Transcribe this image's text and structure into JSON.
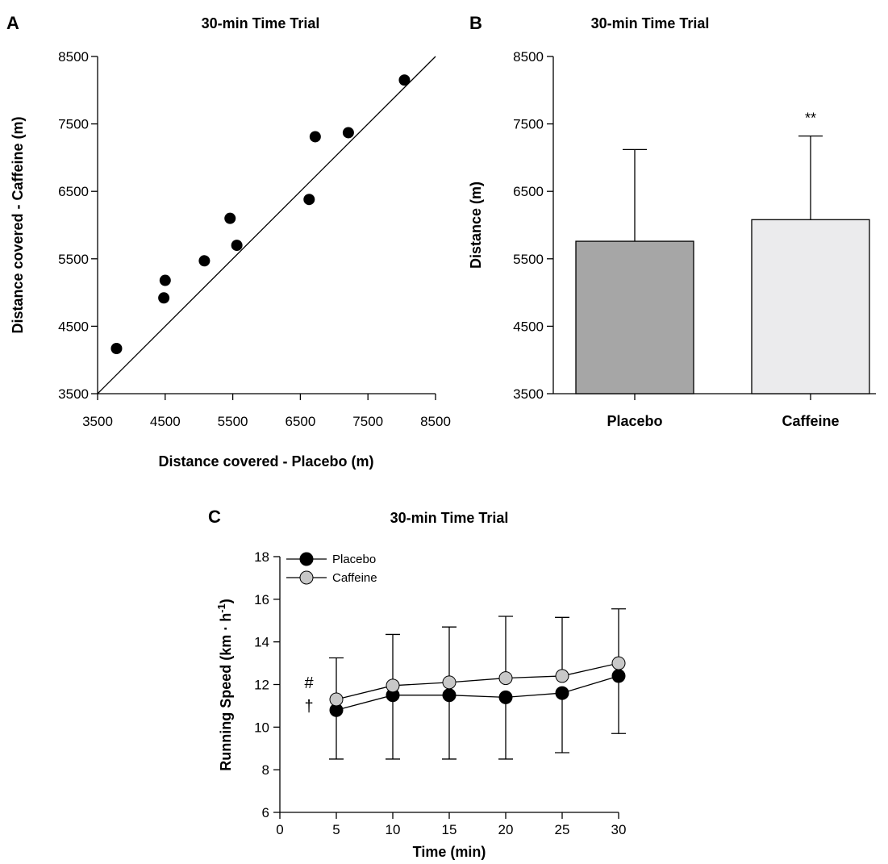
{
  "chart_data": [
    {
      "panel": "A",
      "type": "scatter",
      "title": "30-min Time Trial",
      "xlabel": "Distance covered - Placebo (m)",
      "ylabel": "Distance covered - Caffeine (m)",
      "xlim": [
        3500,
        8500
      ],
      "ylim": [
        3500,
        8500
      ],
      "xticks": [
        "3500",
        "4500",
        "5500",
        "6500",
        "7500",
        "8500"
      ],
      "yticks": [
        "3500",
        "4500",
        "5500",
        "6500",
        "7500",
        "8500"
      ],
      "identity_line": true,
      "points": [
        {
          "x": 3780,
          "y": 4170
        },
        {
          "x": 4480,
          "y": 4920
        },
        {
          "x": 4500,
          "y": 5180
        },
        {
          "x": 5080,
          "y": 5470
        },
        {
          "x": 5460,
          "y": 6100
        },
        {
          "x": 5560,
          "y": 5700
        },
        {
          "x": 6630,
          "y": 6380
        },
        {
          "x": 6720,
          "y": 7310
        },
        {
          "x": 7210,
          "y": 7370
        },
        {
          "x": 8040,
          "y": 8150
        }
      ]
    },
    {
      "panel": "B",
      "type": "bar",
      "title": "30-min Time Trial",
      "ylabel": "Distance (m)",
      "ylim": [
        3500,
        8500
      ],
      "yticks": [
        "3500",
        "4500",
        "5500",
        "6500",
        "7500",
        "8500"
      ],
      "categories": [
        "Placebo",
        "Caffeine"
      ],
      "values": [
        5760,
        6080
      ],
      "error_up": [
        1360,
        1240
      ],
      "colors": [
        "#a6a6a6",
        "#ebebed"
      ],
      "annotations": [
        {
          "category": "Caffeine",
          "text": "**"
        }
      ]
    },
    {
      "panel": "C",
      "type": "line",
      "title": "30-min Time Trial",
      "xlabel": "Time (min)",
      "ylabel_main": "Running Speed (km · h",
      "ylabel_sup": "-1",
      "ylabel_close": ")",
      "xlim": [
        0,
        30
      ],
      "ylim": [
        6,
        18
      ],
      "xticks": [
        "0",
        "5",
        "10",
        "15",
        "20",
        "25",
        "30"
      ],
      "yticks": [
        "6",
        "8",
        "10",
        "12",
        "14",
        "16",
        "18"
      ],
      "x": [
        5,
        10,
        15,
        20,
        25,
        30
      ],
      "series": [
        {
          "name": "Placebo",
          "values": [
            10.8,
            11.5,
            11.5,
            11.4,
            11.6,
            12.4
          ],
          "error_down": [
            2.3,
            3.0,
            3.0,
            2.9,
            2.8,
            2.7
          ],
          "color": "#000000"
        },
        {
          "name": "Caffeine",
          "values": [
            11.3,
            11.95,
            12.1,
            12.3,
            12.4,
            13.0
          ],
          "error_up": [
            1.95,
            2.4,
            2.6,
            2.9,
            2.75,
            2.55
          ],
          "color": "#c8c8c8"
        }
      ],
      "annotations": [
        "#",
        "†"
      ]
    }
  ]
}
